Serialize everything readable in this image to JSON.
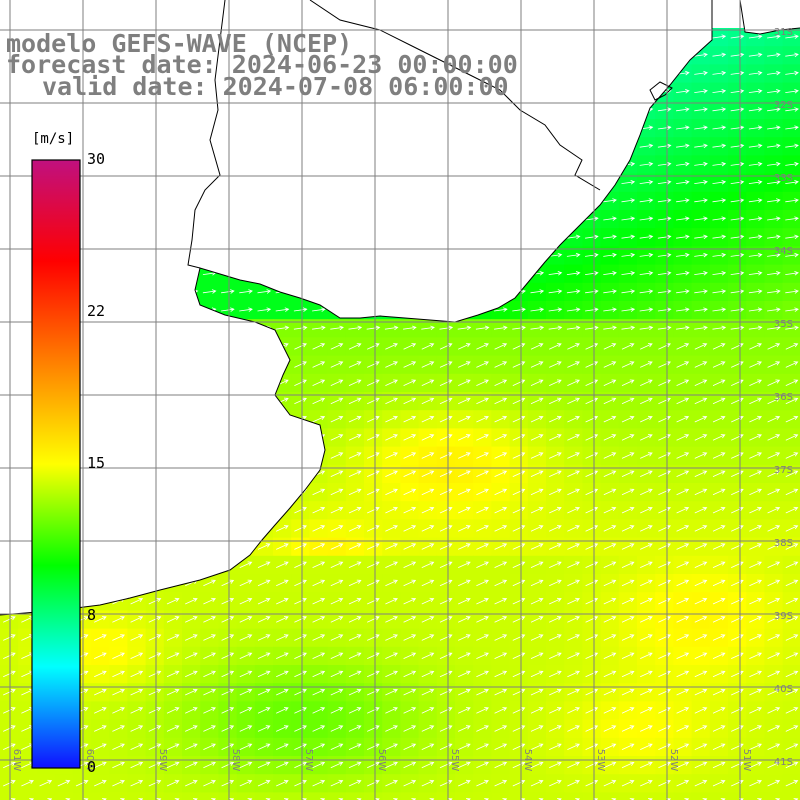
{
  "title": {
    "line1": "modelo GEFS-WAVE (NCEP)",
    "line2": "forecast date: 2024-06-23 00:00:00",
    "line3": "valid date: 2024-07-08 06:00:00"
  },
  "colorbar": {
    "unit": "[m/s]",
    "ticks": [
      "30",
      "22",
      "15",
      "8",
      "0"
    ],
    "tick_values": [
      30,
      22,
      15,
      8,
      0
    ],
    "range": [
      0,
      30
    ],
    "colors": [
      "#1010ff",
      "#00ffff",
      "#00ff00",
      "#ffff00",
      "#ff8000",
      "#ff0000",
      "#c0107f"
    ]
  },
  "map": {
    "lat_labels": [
      "31S",
      "32S",
      "33S",
      "34S",
      "35S",
      "36S",
      "37S",
      "38S",
      "39S",
      "40S",
      "41S"
    ],
    "lon_labels": [
      "61W",
      "60W",
      "59W",
      "58W",
      "57W",
      "56W",
      "55W",
      "54W",
      "53W",
      "52W",
      "51W"
    ],
    "land_color": "#ffffff",
    "grid_color": "#7f7f7f",
    "coast_color": "#000000",
    "arrow_color": "#ffffff",
    "wind_direction": "from the west-southwest"
  }
}
